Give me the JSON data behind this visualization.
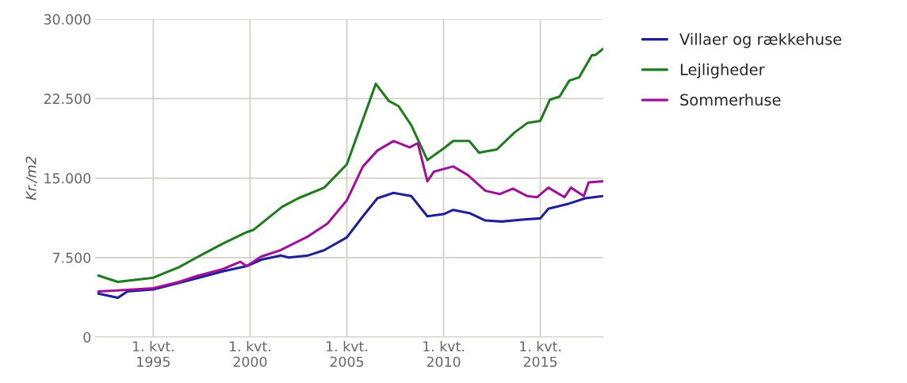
{
  "chart_data": {
    "type": "line",
    "ylabel": "Kr./m2",
    "xlim": [
      "1992-01",
      "2018-04"
    ],
    "xticks": [
      {
        "value": "1995-01",
        "label": "1. kvt.\n1995"
      },
      {
        "value": "2000-01",
        "label": "1. kvt.\n2000"
      },
      {
        "value": "2005-01",
        "label": "1. kvt.\n2005"
      },
      {
        "value": "2010-01",
        "label": "1. kvt.\n2010"
      },
      {
        "value": "2015-01",
        "label": "1. kvt.\n2015"
      }
    ],
    "ylim": [
      0,
      30000
    ],
    "yticks": [
      {
        "value": 0,
        "label": "0"
      },
      {
        "value": 7500,
        "label": "7.500"
      },
      {
        "value": 15000,
        "label": "15.000"
      },
      {
        "value": 22500,
        "label": "22.500"
      },
      {
        "value": 30000,
        "label": "30.000"
      }
    ],
    "grid": true,
    "legend": "right",
    "series": [
      {
        "name": "Villaer og rækkehuse",
        "color": "#1f1f9a",
        "x": [
          "1992-03",
          "1993-03",
          "1993-09",
          "1995-01",
          "1996-05",
          "1998-08",
          "1999-11",
          "2000-08",
          "2001-08",
          "2002-01",
          "2003-01",
          "2003-11",
          "2005-01",
          "2005-11",
          "2006-08",
          "2007-06",
          "2008-05",
          "2009-03",
          "2010-01",
          "2010-07",
          "2011-05",
          "2012-03",
          "2013-01",
          "2014-03",
          "2015-01",
          "2015-06",
          "2016-07",
          "2017-05",
          "2018-04"
        ],
        "values": [
          4100,
          3700,
          4300,
          4500,
          5100,
          6200,
          6700,
          7300,
          7700,
          7500,
          7700,
          8200,
          9400,
          11400,
          13100,
          13600,
          13300,
          11400,
          11600,
          12000,
          11700,
          11000,
          10900,
          11100,
          11200,
          12100,
          12600,
          13100,
          13300
        ]
      },
      {
        "name": "Lejligheder",
        "color": "#1e7b1e",
        "x": [
          "1992-03",
          "1993-03",
          "1995-01",
          "1996-05",
          "1997-05",
          "1998-08",
          "1999-11",
          "2000-03",
          "2001-09",
          "2002-07",
          "2003-11",
          "2005-01",
          "2006-07",
          "2007-03",
          "2007-09",
          "2008-05",
          "2009-03",
          "2010-01",
          "2010-07",
          "2011-05",
          "2011-11",
          "2012-10",
          "2013-09",
          "2014-05",
          "2015-01",
          "2015-07",
          "2016-01",
          "2016-07",
          "2017-01",
          "2017-09",
          "2017-11",
          "2018-04"
        ],
        "values": [
          5800,
          5200,
          5600,
          6600,
          7600,
          8800,
          9900,
          10100,
          12300,
          13100,
          14100,
          16300,
          23900,
          22300,
          21800,
          20000,
          16700,
          17800,
          18500,
          18500,
          17400,
          17700,
          19300,
          20200,
          20400,
          22400,
          22700,
          24200,
          24500,
          26600,
          26600,
          27200
        ]
      },
      {
        "name": "Sommerhuse",
        "color": "#a0119a",
        "x": [
          "1992-03",
          "1993-03",
          "1995-01",
          "1996-05",
          "1997-05",
          "1998-08",
          "1999-07",
          "1999-11",
          "2000-08",
          "2001-08",
          "2003-01",
          "2004-01",
          "2005-01",
          "2005-11",
          "2006-08",
          "2007-06",
          "2008-04",
          "2008-09",
          "2009-03",
          "2009-07",
          "2010-07",
          "2011-04",
          "2012-03",
          "2012-12",
          "2013-08",
          "2014-05",
          "2014-11",
          "2015-06",
          "2016-04",
          "2016-08",
          "2017-04",
          "2017-07",
          "2018-04"
        ],
        "values": [
          4300,
          4400,
          4600,
          5200,
          5800,
          6400,
          7100,
          6700,
          7600,
          8200,
          9500,
          10700,
          12900,
          16100,
          17600,
          18500,
          17900,
          18300,
          14700,
          15600,
          16100,
          15300,
          13800,
          13500,
          14000,
          13300,
          13200,
          14100,
          13200,
          14100,
          13300,
          14600,
          14700
        ]
      }
    ]
  }
}
